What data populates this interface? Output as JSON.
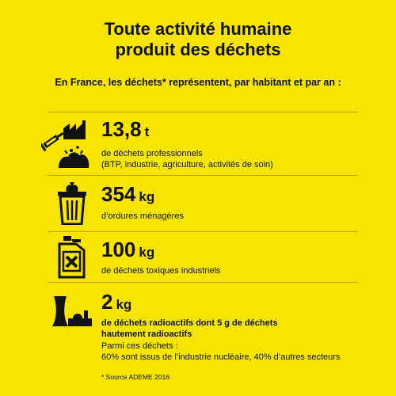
{
  "title": {
    "line1": "Toute activité humaine",
    "line2": "produit des déchets"
  },
  "intro": "En France, les déchets* représentent, par habitant et par an :",
  "items": [
    {
      "icon": "industry-waste-icon",
      "value": "13,8",
      "unit": "t",
      "lines": [
        "de déchets professionnels",
        "(BTP, industrie, agriculture, activités de soin)"
      ]
    },
    {
      "icon": "trash-bin-icon",
      "value": "354",
      "unit": "kg",
      "lines": [
        "d’ordures ménagères"
      ]
    },
    {
      "icon": "toxic-canister-icon",
      "value": "100",
      "unit": "kg",
      "lines": [
        "de déchets toxiques industriels"
      ]
    },
    {
      "icon": "nuclear-plant-icon",
      "value": "2",
      "unit": "kg",
      "bold_lines": [
        "de déchets radioactifs dont 5 g de déchets",
        "hautement radioactifs"
      ],
      "lines": [
        "Parmi ces déchets :",
        "60% sont issus de l’industrie nucléaire, 40% d’autres secteurs"
      ]
    }
  ],
  "source": "* Source ADEME 2016"
}
